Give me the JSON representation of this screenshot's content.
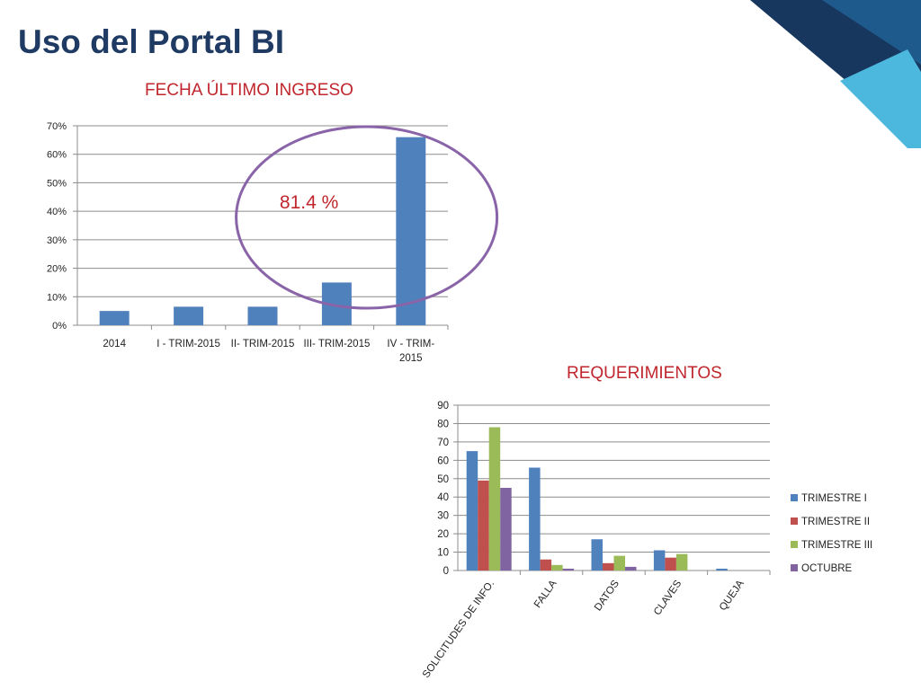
{
  "page": {
    "title": "Uso del Portal BI"
  },
  "colors": {
    "title": "#1f3b63",
    "chart_title": "#c0262d",
    "annotation_circle": "#8a64a8"
  },
  "chart_data": [
    {
      "type": "bar",
      "title": "FECHA ÚLTIMO INGRESO",
      "categories": [
        "2014",
        "I - TRIM-2015",
        "II- TRIM-2015",
        "III- TRIM-2015",
        "IV - TRIM-2015"
      ],
      "category_lines": [
        [
          "2014"
        ],
        [
          "I - TRIM-2015"
        ],
        [
          "II- TRIM-2015"
        ],
        [
          "III- TRIM-2015"
        ],
        [
          "IV - TRIM-",
          "2015"
        ]
      ],
      "values": [
        5,
        6.5,
        6.5,
        15,
        66
      ],
      "ylim": [
        0,
        70
      ],
      "yticks": [
        "0%",
        "10%",
        "20%",
        "30%",
        "40%",
        "50%",
        "60%",
        "70%"
      ],
      "grid": true,
      "legend": "none",
      "color": "#4f81bd",
      "annotation": {
        "text": "81.4 %",
        "shape": "ellipse",
        "covers": [
          "III- TRIM-2015",
          "IV - TRIM-2015"
        ]
      }
    },
    {
      "type": "bar",
      "title": "REQUERIMIENTOS",
      "categories": [
        "SOLICITUDES DE INFO.",
        "FALLA",
        "DATOS",
        "CLAVES",
        "QUEJA"
      ],
      "series": [
        {
          "name": "TRIMESTRE I",
          "values": [
            65,
            56,
            17,
            11,
            1
          ],
          "color": "#4f81bd"
        },
        {
          "name": "TRIMESTRE II",
          "values": [
            49,
            6,
            4,
            7,
            0
          ],
          "color": "#c0504d"
        },
        {
          "name": "TRIMESTRE III",
          "values": [
            78,
            3,
            8,
            9,
            0
          ],
          "color": "#9bbb59"
        },
        {
          "name": "OCTUBRE",
          "values": [
            45,
            1,
            2,
            0,
            0
          ],
          "color": "#8064a2"
        }
      ],
      "ylim": [
        0,
        90
      ],
      "yticks": [
        "0",
        "10",
        "20",
        "30",
        "40",
        "50",
        "60",
        "70",
        "80",
        "90"
      ],
      "grid": true,
      "legend": "right"
    }
  ]
}
